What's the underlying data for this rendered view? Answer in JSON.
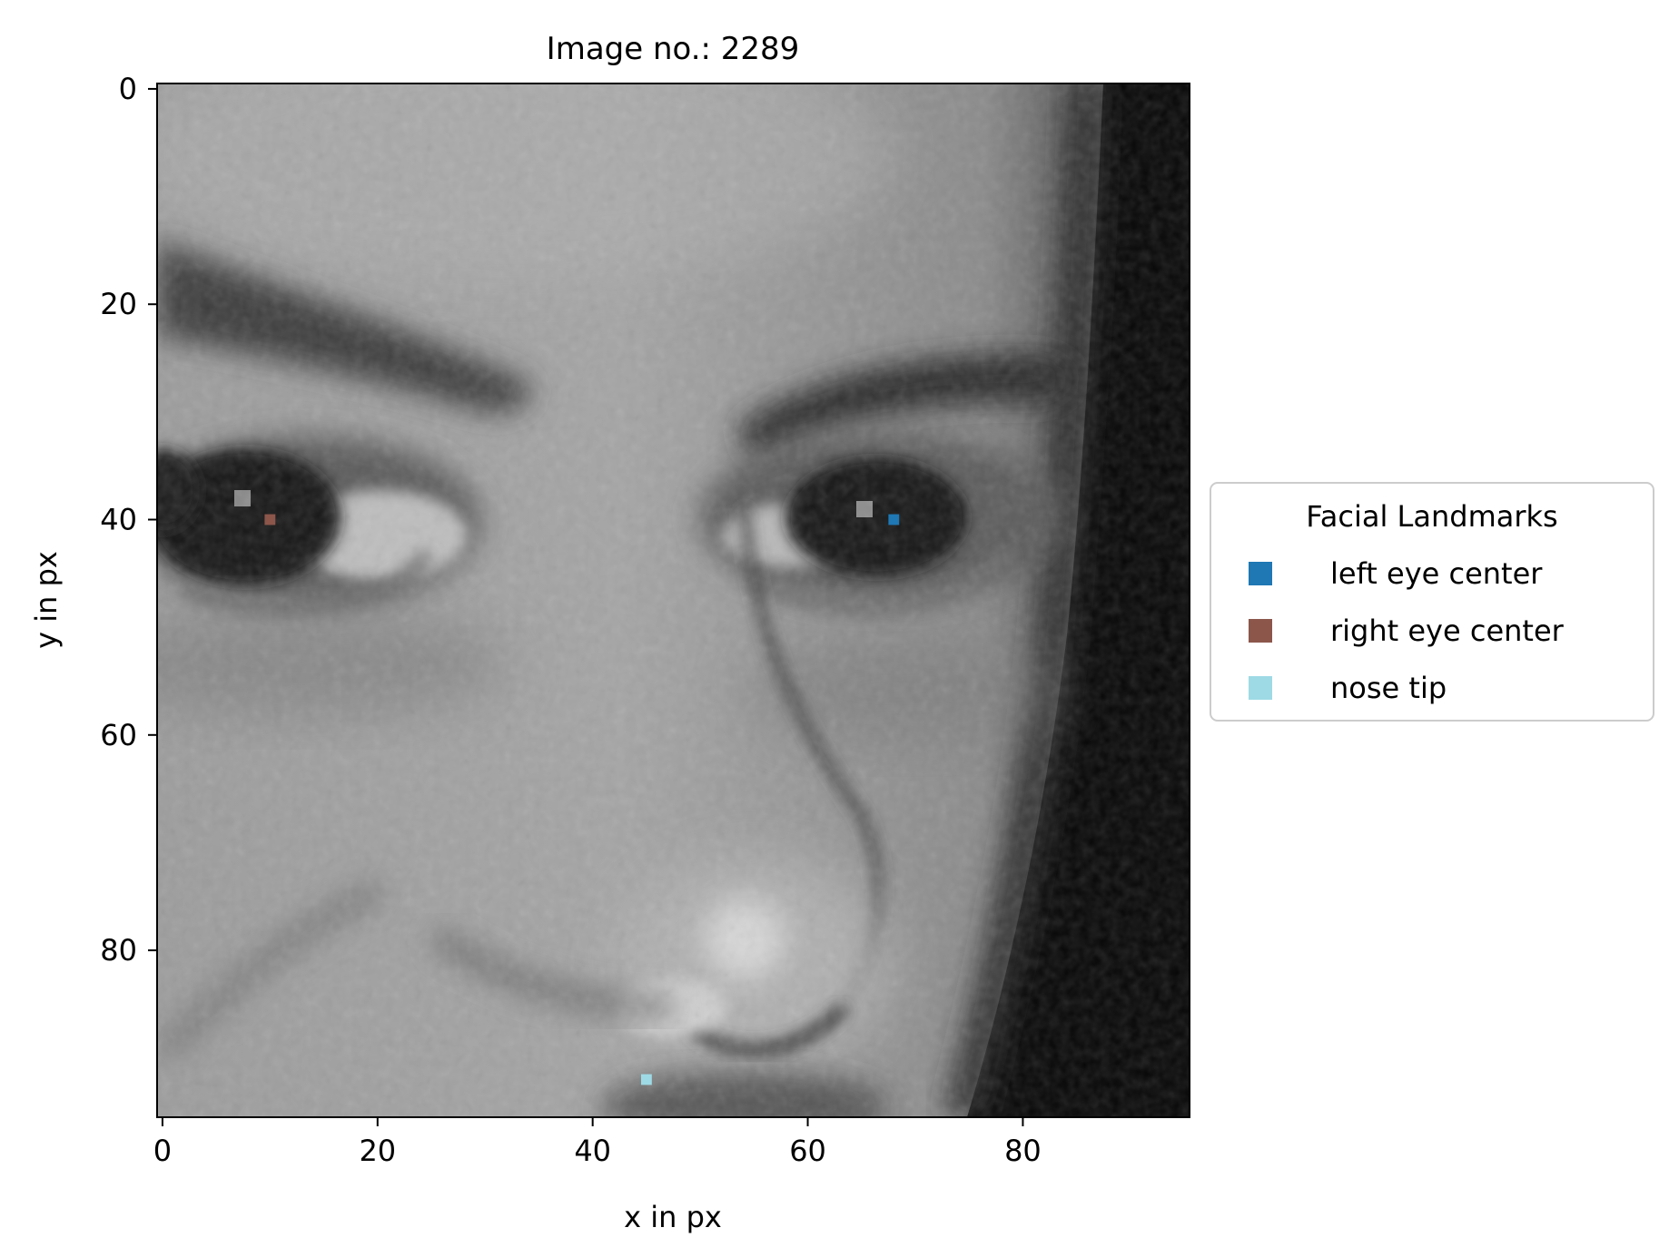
{
  "chart_data": {
    "type": "scatter",
    "title": "Image no.: 2289",
    "xlabel": "x in px",
    "ylabel": "y in px",
    "xlim": [
      -0.5,
      95.5
    ],
    "ylim": [
      95.5,
      -0.5
    ],
    "xticks": [
      0,
      20,
      40,
      60,
      80
    ],
    "yticks": [
      0,
      20,
      40,
      60,
      80
    ],
    "y_inverted": true,
    "grid": false,
    "background": "grayscale face photograph",
    "legend": {
      "title": "Facial Landmarks",
      "placement": "right, outside axes"
    },
    "series": [
      {
        "name": "left eye center",
        "color": "#1f77b4",
        "marker": "square",
        "x": [
          68
        ],
        "y": [
          40
        ]
      },
      {
        "name": "right eye center",
        "color": "#8c564b",
        "marker": "square",
        "x": [
          10
        ],
        "y": [
          40
        ]
      },
      {
        "name": "nose tip",
        "color": "#9edae5",
        "marker": "square",
        "x": [
          45
        ],
        "y": [
          92
        ]
      }
    ]
  }
}
